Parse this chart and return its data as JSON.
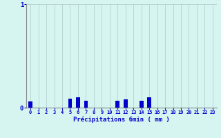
{
  "hours": [
    0,
    1,
    2,
    3,
    4,
    5,
    6,
    7,
    8,
    9,
    10,
    11,
    12,
    13,
    14,
    15,
    16,
    17,
    18,
    19,
    20,
    21,
    22,
    23
  ],
  "values": [
    0.06,
    0,
    0,
    0,
    0,
    0.09,
    0.1,
    0.07,
    0,
    0,
    0,
    0.07,
    0.08,
    0,
    0.07,
    0.1,
    0,
    0,
    0,
    0,
    0,
    0,
    0,
    0
  ],
  "bar_color": "#0000cc",
  "bg_color": "#d6f5f0",
  "grid_color": "#b0c8c8",
  "axis_color": "#888888",
  "text_color": "#0000cc",
  "xlabel": "Précipitations 6min ( mm )",
  "ylim": [
    0,
    1.0
  ],
  "yticks": [
    0,
    1
  ],
  "xticks": [
    0,
    1,
    2,
    3,
    4,
    5,
    6,
    7,
    8,
    9,
    10,
    11,
    12,
    13,
    14,
    15,
    16,
    17,
    18,
    19,
    20,
    21,
    22,
    23
  ],
  "figsize": [
    3.2,
    2.0
  ],
  "dpi": 100
}
